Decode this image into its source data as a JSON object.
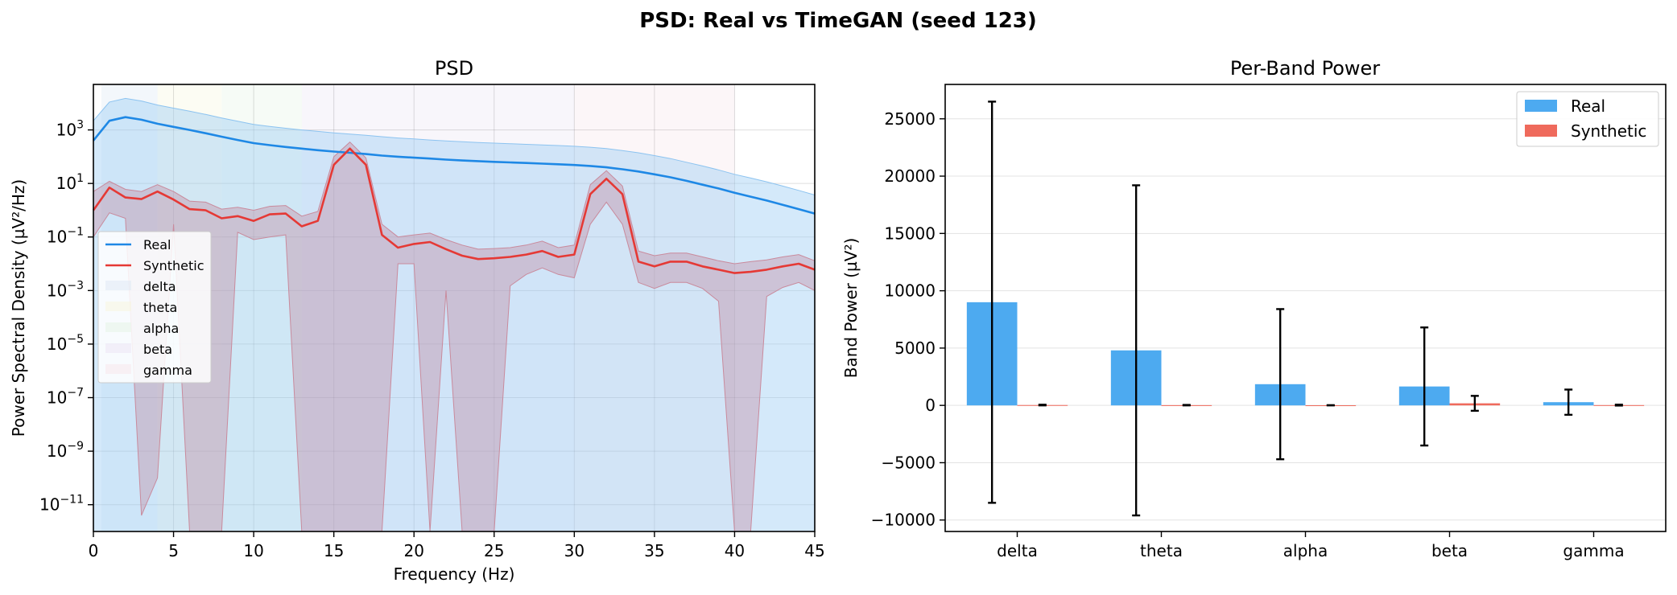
{
  "figure": {
    "suptitle": "PSD: Real vs TimeGAN (seed 123)"
  },
  "chart_data": [
    {
      "type": "line",
      "title": "PSD",
      "xlabel": "Frequency (Hz)",
      "ylabel": "Power Spectral Density (µV²/Hz)",
      "xlim": [
        0,
        45
      ],
      "ylim": [
        1e-12,
        50000
      ],
      "yscale": "log",
      "grid": true,
      "legend_position": "center-left",
      "xticks": [
        0,
        5,
        10,
        15,
        20,
        25,
        30,
        35,
        40,
        45
      ],
      "yticks": [
        {
          "value": 1e-11,
          "base": "10",
          "exp": "−11"
        },
        {
          "value": 1e-09,
          "base": "10",
          "exp": "−9"
        },
        {
          "value": 1e-07,
          "base": "10",
          "exp": "−7"
        },
        {
          "value": 1e-05,
          "base": "10",
          "exp": "−5"
        },
        {
          "value": 0.001,
          "base": "10",
          "exp": "−3"
        },
        {
          "value": 0.1,
          "base": "10",
          "exp": "−1"
        },
        {
          "value": 10,
          "base": "10",
          "exp": "1"
        },
        {
          "value": 1000,
          "base": "10",
          "exp": "3"
        }
      ],
      "bands": [
        {
          "name": "delta",
          "range": [
            0.5,
            4
          ],
          "color": "#dde8f3"
        },
        {
          "name": "theta",
          "range": [
            4,
            8
          ],
          "color": "#f7f5dc"
        },
        {
          "name": "alpha",
          "range": [
            8,
            13
          ],
          "color": "#e4f3e4"
        },
        {
          "name": "beta",
          "range": [
            13,
            30
          ],
          "color": "#ece4f3"
        },
        {
          "name": "gamma",
          "range": [
            30,
            40
          ],
          "color": "#f7e6ea"
        }
      ],
      "x": [
        0,
        1,
        2,
        3,
        4,
        5,
        6,
        7,
        8,
        9,
        10,
        11,
        12,
        13,
        14,
        15,
        16,
        17,
        18,
        19,
        20,
        21,
        22,
        23,
        24,
        25,
        26,
        27,
        28,
        29,
        30,
        31,
        32,
        33,
        34,
        35,
        36,
        37,
        38,
        39,
        40,
        41,
        42,
        43,
        44,
        45
      ],
      "series": [
        {
          "name": "Real",
          "color": "#1e88e5",
          "values": [
            400,
            2200,
            3000,
            2400,
            1700,
            1300,
            1000,
            750,
            560,
            420,
            320,
            270,
            230,
            200,
            175,
            155,
            140,
            125,
            110,
            100,
            92,
            85,
            78,
            72,
            68,
            64,
            61,
            58,
            55,
            52,
            49,
            45,
            40,
            34,
            28,
            22,
            17,
            12.5,
            9,
            6.5,
            4.5,
            3.2,
            2.3,
            1.6,
            1.1,
            0.75
          ],
          "band_upper": [
            2200,
            11000,
            15000,
            12000,
            8500,
            6500,
            5000,
            3800,
            2800,
            2100,
            1600,
            1350,
            1150,
            1000,
            880,
            780,
            700,
            630,
            560,
            500,
            460,
            420,
            390,
            360,
            340,
            320,
            305,
            290,
            275,
            260,
            245,
            225,
            200,
            170,
            140,
            110,
            85,
            62,
            45,
            32,
            22,
            16,
            11.5,
            8,
            5.5,
            3.7
          ],
          "band_lower": [
            1e-12,
            1e-12,
            1e-12,
            1e-12,
            1e-12,
            1e-12,
            1e-12,
            1e-12,
            1e-12,
            1e-12,
            1e-12,
            1e-12,
            1e-12,
            1e-12,
            1e-12,
            1e-12,
            1e-12,
            1e-12,
            1e-12,
            1e-12,
            1e-12,
            1e-12,
            1e-12,
            1e-12,
            1e-12,
            1e-12,
            1e-12,
            1e-12,
            1e-12,
            1e-12,
            1e-12,
            1e-12,
            1e-12,
            1e-12,
            1e-12,
            1e-12,
            1e-12,
            1e-12,
            1e-12,
            1e-12,
            1e-12,
            1e-12,
            1e-12,
            1e-12,
            1e-12,
            1e-12
          ]
        },
        {
          "name": "Synthetic",
          "color": "#e53935",
          "values": [
            1,
            7,
            3,
            2.6,
            5,
            2.5,
            1.1,
            1,
            0.5,
            0.6,
            0.4,
            0.7,
            0.75,
            0.25,
            0.4,
            50,
            200,
            50,
            0.12,
            0.04,
            0.055,
            0.065,
            0.035,
            0.02,
            0.015,
            0.016,
            0.018,
            0.022,
            0.03,
            0.018,
            0.022,
            4,
            15,
            4,
            0.012,
            0.008,
            0.012,
            0.012,
            0.008,
            0.006,
            0.0045,
            0.005,
            0.006,
            0.008,
            0.01,
            0.006
          ],
          "band_upper": [
            5,
            12,
            6,
            5,
            9,
            5,
            2.2,
            2,
            1.1,
            1.3,
            1,
            1.4,
            1.5,
            0.6,
            0.9,
            100,
            350,
            90,
            0.3,
            0.1,
            0.12,
            0.14,
            0.08,
            0.05,
            0.035,
            0.037,
            0.04,
            0.05,
            0.07,
            0.04,
            0.05,
            9,
            30,
            8,
            0.03,
            0.02,
            0.025,
            0.025,
            0.018,
            0.013,
            0.01,
            0.012,
            0.014,
            0.018,
            0.022,
            0.013
          ],
          "band_lower": [
            0.1,
            0.8,
            0.5,
            4e-12,
            1e-10,
            0.3,
            1e-12,
            1e-12,
            1e-12,
            0.15,
            0.08,
            0.1,
            0.12,
            1e-12,
            1e-12,
            1e-12,
            1e-12,
            1e-12,
            1e-12,
            0.01,
            0.01,
            1e-12,
            0.001,
            1e-12,
            1e-12,
            1e-12,
            0.0015,
            0.004,
            0.007,
            0.004,
            0.003,
            0.3,
            2,
            0.3,
            0.002,
            0.0012,
            0.002,
            0.002,
            0.0012,
            0.0004,
            1e-12,
            1e-12,
            0.0006,
            0.0013,
            0.002,
            0.001
          ]
        }
      ]
    },
    {
      "type": "bar",
      "title": "Per-Band Power",
      "xlabel": "",
      "ylabel": "Band Power (µV²)",
      "ylim": [
        -11000,
        28000
      ],
      "grid": true,
      "legend_position": "top-right",
      "categories": [
        "delta",
        "theta",
        "alpha",
        "beta",
        "gamma"
      ],
      "yticks": [
        -10000,
        -5000,
        0,
        5000,
        10000,
        15000,
        20000,
        25000
      ],
      "ytick_labels": [
        "−10000",
        "−5000",
        "0",
        "5000",
        "10000",
        "15000",
        "20000",
        "25000"
      ],
      "series": [
        {
          "name": "Real",
          "color": "#4daaf0",
          "values": [
            9000,
            4800,
            1850,
            1650,
            280
          ],
          "errors": [
            17500,
            14400,
            6550,
            5150,
            1100
          ]
        },
        {
          "name": "Synthetic",
          "color": "#ef6a5c",
          "values": [
            30,
            20,
            10,
            180,
            25
          ],
          "errors": [
            30,
            20,
            10,
            650,
            40
          ]
        }
      ]
    }
  ]
}
